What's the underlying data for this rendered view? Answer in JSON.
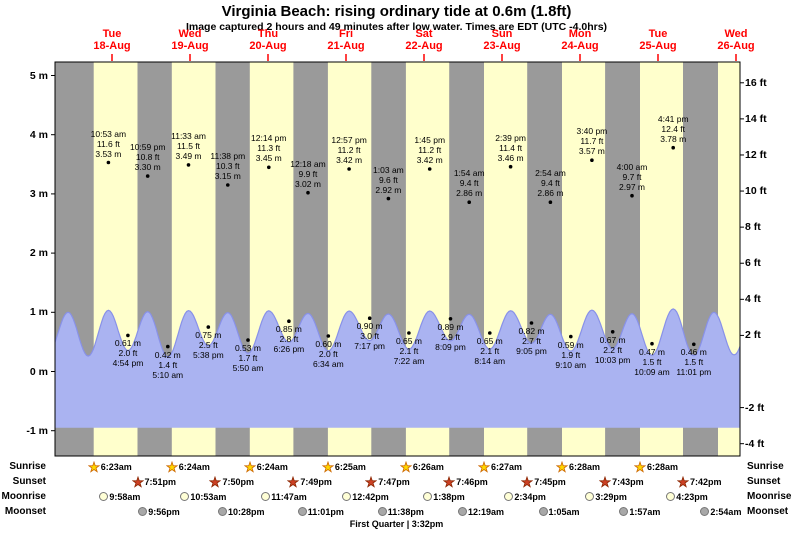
{
  "title": "Virginia Beach: rising ordinary tide at 0.6m (1.8ft)",
  "subtitle": "Image captured 2 hours and 49 minutes after low water. Times are EDT (UTC -4.0hrs)",
  "days": [
    {
      "dow": "Tue",
      "date": "18-Aug"
    },
    {
      "dow": "Wed",
      "date": "19-Aug"
    },
    {
      "dow": "Thu",
      "date": "20-Aug"
    },
    {
      "dow": "Fri",
      "date": "21-Aug"
    },
    {
      "dow": "Sat",
      "date": "22-Aug"
    },
    {
      "dow": "Sun",
      "date": "23-Aug"
    },
    {
      "dow": "Mon",
      "date": "24-Aug"
    },
    {
      "dow": "Tue",
      "date": "25-Aug"
    },
    {
      "dow": "Wed",
      "date": "26-Aug"
    }
  ],
  "axes": {
    "m_ticks": [
      5,
      4,
      3,
      2,
      1,
      0,
      -1
    ],
    "ft_ticks": [
      16,
      14,
      12,
      10,
      8,
      6,
      4,
      2,
      -2,
      -4
    ],
    "m_unit": "m",
    "ft_unit": "ft"
  },
  "labels": {
    "sunrise": "Sunrise",
    "sunset": "Sunset",
    "moonrise": "Moonrise",
    "moonset": "Moonset"
  },
  "chart_data": {
    "type": "area",
    "ylim_m": [
      -1.6,
      5.6
    ],
    "day_span": [
      "18-Aug",
      "26-Aug"
    ],
    "high_tides": [
      {
        "day": 0,
        "time": "10:53 am",
        "ft": "11.6",
        "m": "3.53"
      },
      {
        "day": 0,
        "time": "10:59 pm",
        "ft": "10.8",
        "m": "3.30"
      },
      {
        "day": 1,
        "time": "11:33 am",
        "ft": "11.5",
        "m": "3.49"
      },
      {
        "day": 1,
        "time": "11:38 pm",
        "ft": "10.3",
        "m": "3.15"
      },
      {
        "day": 2,
        "time": "12:14 pm",
        "ft": "11.3",
        "m": "3.45"
      },
      {
        "day": 3,
        "time": "12:18 am",
        "ft": "9.9",
        "m": "3.02"
      },
      {
        "day": 3,
        "time": "12:57 pm",
        "ft": "11.2",
        "m": "3.42"
      },
      {
        "day": 4,
        "time": "1:03 am",
        "ft": "9.6",
        "m": "2.92"
      },
      {
        "day": 4,
        "time": "1:45 pm",
        "ft": "11.2",
        "m": "3.42"
      },
      {
        "day": 5,
        "time": "1:54 am",
        "ft": "9.4",
        "m": "2.86"
      },
      {
        "day": 5,
        "time": "2:39 pm",
        "ft": "11.4",
        "m": "3.46"
      },
      {
        "day": 6,
        "time": "2:54 am",
        "ft": "9.4",
        "m": "2.86"
      },
      {
        "day": 6,
        "time": "3:40 pm",
        "ft": "11.7",
        "m": "3.57"
      },
      {
        "day": 7,
        "time": "4:00 am",
        "ft": "9.7",
        "m": "2.97"
      },
      {
        "day": 7,
        "time": "4:41 pm",
        "ft": "12.4",
        "m": "3.78"
      }
    ],
    "low_tides": [
      {
        "day": 0,
        "time": "4:54 pm",
        "m": "0.61",
        "ft": "2.0"
      },
      {
        "day": 1,
        "time": "5:10 am",
        "m": "0.42",
        "ft": "1.4"
      },
      {
        "day": 1,
        "time": "5:38 pm",
        "m": "0.75",
        "ft": "2.5"
      },
      {
        "day": 2,
        "time": "5:50 am",
        "m": "0.53",
        "ft": "1.7"
      },
      {
        "day": 2,
        "time": "6:26 pm",
        "m": "0.85",
        "ft": "2.8"
      },
      {
        "day": 3,
        "time": "6:34 am",
        "m": "0.60",
        "ft": "2.0"
      },
      {
        "day": 3,
        "time": "7:17 pm",
        "m": "0.90",
        "ft": "3.0"
      },
      {
        "day": 4,
        "time": "7:22 am",
        "m": "0.65",
        "ft": "2.1"
      },
      {
        "day": 4,
        "time": "8:09 pm",
        "m": "0.89",
        "ft": "2.9"
      },
      {
        "day": 5,
        "time": "8:14 am",
        "m": "0.65",
        "ft": "2.1"
      },
      {
        "day": 5,
        "time": "9:05 pm",
        "m": "0.82",
        "ft": "2.7"
      },
      {
        "day": 6,
        "time": "9:10 am",
        "m": "0.59",
        "ft": "1.9"
      },
      {
        "day": 6,
        "time": "10:03 pm",
        "m": "0.67",
        "ft": "2.2"
      },
      {
        "day": 7,
        "time": "10:09 am",
        "m": "0.47",
        "ft": "1.5"
      },
      {
        "day": 7,
        "time": "11:01 pm",
        "m": "0.46",
        "ft": "1.5"
      }
    ],
    "sunrise": [
      {
        "day": 0,
        "time": "6:23am"
      },
      {
        "day": 1,
        "time": "6:24am"
      },
      {
        "day": 2,
        "time": "6:24am"
      },
      {
        "day": 3,
        "time": "6:25am"
      },
      {
        "day": 4,
        "time": "6:26am"
      },
      {
        "day": 5,
        "time": "6:27am"
      },
      {
        "day": 6,
        "time": "6:28am"
      },
      {
        "day": 7,
        "time": "6:28am"
      }
    ],
    "sunset": [
      {
        "day": 0,
        "time": "7:51pm"
      },
      {
        "day": 1,
        "time": "7:50pm"
      },
      {
        "day": 2,
        "time": "7:49pm"
      },
      {
        "day": 3,
        "time": "7:47pm"
      },
      {
        "day": 4,
        "time": "7:46pm"
      },
      {
        "day": 5,
        "time": "7:45pm"
      },
      {
        "day": 6,
        "time": "7:43pm"
      },
      {
        "day": 7,
        "time": "7:42pm"
      }
    ],
    "moonrise": [
      {
        "day": 0,
        "time": "9:58am"
      },
      {
        "day": 1,
        "time": "10:53am"
      },
      {
        "day": 2,
        "time": "11:47am"
      },
      {
        "day": 3,
        "time": "12:42pm"
      },
      {
        "day": 4,
        "time": "1:38pm"
      },
      {
        "day": 5,
        "time": "2:34pm"
      },
      {
        "day": 6,
        "time": "3:29pm"
      },
      {
        "day": 7,
        "time": "4:23pm"
      }
    ],
    "moonset": [
      {
        "day": 0,
        "time": "9:56pm"
      },
      {
        "day": 1,
        "time": "10:28pm"
      },
      {
        "day": 2,
        "time": "11:01pm"
      },
      {
        "day": 3,
        "time": "11:38pm"
      },
      {
        "day": 5,
        "time": "12:19am"
      },
      {
        "day": 6,
        "time": "1:05am"
      },
      {
        "day": 7,
        "time": "1:57am"
      },
      {
        "day": 8,
        "time": "2:54am"
      }
    ],
    "moon_phase": "First Quarter | 3:32pm"
  },
  "colors": {
    "night_band": "#9a9a9a",
    "day_band": "#ffffcc",
    "curve_fill": "#aab3f1",
    "curve_line": "#8891e8",
    "accent_red": "#ff0000",
    "sunrise_star_fill": "#ffd700",
    "sunrise_star_stroke": "#cc6600",
    "sunset_star_fill": "#cc4125",
    "sunset_star_stroke": "#8b2500",
    "moonrise_fill": "#ffffd6",
    "moonset_fill": "#a8a8a8"
  }
}
